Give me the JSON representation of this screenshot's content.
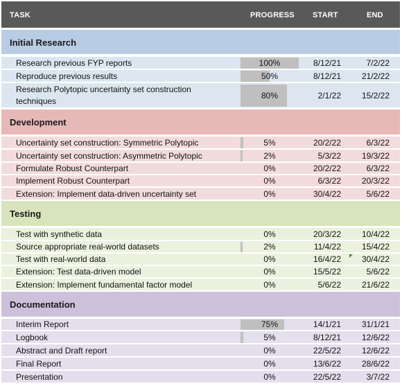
{
  "header": {
    "task": "TASK",
    "progress": "PROGRESS",
    "start": "START",
    "end": "END"
  },
  "colors": {
    "header_bg": "#595959",
    "research": "#b8cce4",
    "research_row": "#dce6f1",
    "development": "#e6b8b7",
    "development_row": "#f2dcdb",
    "testing": "#d8e4bc",
    "testing_row": "#ebf1de",
    "documentation": "#ccc0da",
    "documentation_row": "#e4dfec",
    "progress_fill": "#bfbfbf"
  },
  "sections": [
    {
      "title": "Initial Research",
      "tasks": [
        {
          "name": "Research previous FYP reports",
          "progress_text": "100%",
          "progress": 1.0,
          "start": "8/12/21",
          "end": "7/2/22"
        },
        {
          "name": "Reproduce previous results",
          "progress_text": "50%",
          "progress": 0.5,
          "start": "8/12/21",
          "end": "21/2/22"
        },
        {
          "name": "Research Polytopic uncertainty set construction techniques",
          "progress_text": "80%",
          "progress": 0.8,
          "start": "2/1/22",
          "end": "15/2/22"
        }
      ]
    },
    {
      "title": "Development",
      "tasks": [
        {
          "name": "Uncertainty set construction: Symmetric Polytopic",
          "progress_text": "5%",
          "progress": 0.05,
          "start": "20/2/22",
          "end": "6/3/22"
        },
        {
          "name": "Uncertainty set construction: Asymmetric Polytopic",
          "progress_text": "2%",
          "progress": 0.02,
          "start": "5/3/22",
          "end": "19/3/22"
        },
        {
          "name": "Formulate Robust Counterpart",
          "progress_text": "0%",
          "progress": 0,
          "start": "20/2/22",
          "end": "6/3/22"
        },
        {
          "name": "Implement Robust Counterpart",
          "progress_text": "0%",
          "progress": 0,
          "start": "6/3/22",
          "end": "20/3/22"
        },
        {
          "name": "Extension: Implement data-driven uncertainty set",
          "progress_text": "0%",
          "progress": 0,
          "start": "30/4/22",
          "end": "5/6/22"
        }
      ]
    },
    {
      "title": "Testing",
      "tasks": [
        {
          "name": "Test with synthetic data",
          "progress_text": "0%",
          "progress": 0,
          "start": "20/3/22",
          "end": "10/4/22"
        },
        {
          "name": "Source appropriate real-world datasets",
          "progress_text": "2%",
          "progress": 0.02,
          "start": "11/4/22",
          "end": "15/4/22"
        },
        {
          "name": "Test with real-world data",
          "progress_text": "0%",
          "progress": 0,
          "start": "16/4/22",
          "end": "30/4/22"
        },
        {
          "name": "Extension: Test data-driven model",
          "progress_text": "0%",
          "progress": 0,
          "start": "15/5/22",
          "end": "5/6/22"
        },
        {
          "name": "Extension: Implement fundamental factor model",
          "progress_text": "0%",
          "progress": 0,
          "start": "5/6/22",
          "end": "21/6/22"
        }
      ]
    },
    {
      "title": "Documentation",
      "tasks": [
        {
          "name": "Interim Report",
          "progress_text": "75%",
          "progress": 0.75,
          "start": "14/1/21",
          "end": "31/1/21"
        },
        {
          "name": "Logbook",
          "progress_text": "5%",
          "progress": 0.05,
          "start": "8/12/21",
          "end": "12/6/22"
        },
        {
          "name": "Abstract and Draft report",
          "progress_text": "0%",
          "progress": 0,
          "start": "22/5/22",
          "end": "12/6/22"
        },
        {
          "name": "Final Report",
          "progress_text": "0%",
          "progress": 0,
          "start": "13/6/22",
          "end": "28/6/22"
        },
        {
          "name": "Presentation",
          "progress_text": "0%",
          "progress": 0,
          "start": "22/5/22",
          "end": "3/7/22"
        }
      ]
    }
  ]
}
